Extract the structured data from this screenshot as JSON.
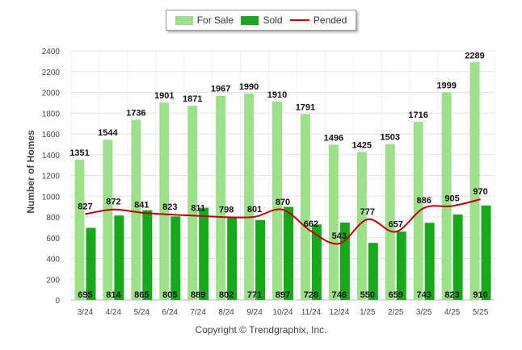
{
  "chart_data": {
    "type": "bar",
    "categories": [
      "3/24",
      "4/24",
      "5/24",
      "6/24",
      "7/24",
      "8/24",
      "9/24",
      "10/24",
      "11/24",
      "12/24",
      "1/25",
      "2/25",
      "3/25",
      "4/25",
      "5/25"
    ],
    "series": [
      {
        "name": "For Sale",
        "type": "bar",
        "color": "#9de08a",
        "values": [
          1351,
          1544,
          1736,
          1901,
          1871,
          1967,
          1990,
          1910,
          1791,
          1496,
          1425,
          1503,
          1716,
          1999,
          2289
        ]
      },
      {
        "name": "Sold",
        "type": "bar",
        "color": "#17a81c",
        "values": [
          695,
          814,
          865,
          805,
          889,
          802,
          771,
          897,
          728,
          746,
          550,
          659,
          743,
          823,
          910
        ]
      },
      {
        "name": "Pended",
        "type": "line",
        "color": "#c00000",
        "values": [
          827,
          872,
          841,
          823,
          811,
          798,
          801,
          870,
          662,
          543,
          777,
          657,
          886,
          905,
          970
        ]
      }
    ],
    "ylabel": "Number of Homes",
    "xlabel": "",
    "ylim": [
      0,
      2400
    ],
    "yticks": [
      0,
      200,
      400,
      600,
      800,
      1000,
      1200,
      1400,
      1600,
      1800,
      2000,
      2200,
      2400
    ],
    "grid": true,
    "legend_position": "top-center"
  },
  "copyright": "Copyright © Trendgraphix, Inc."
}
